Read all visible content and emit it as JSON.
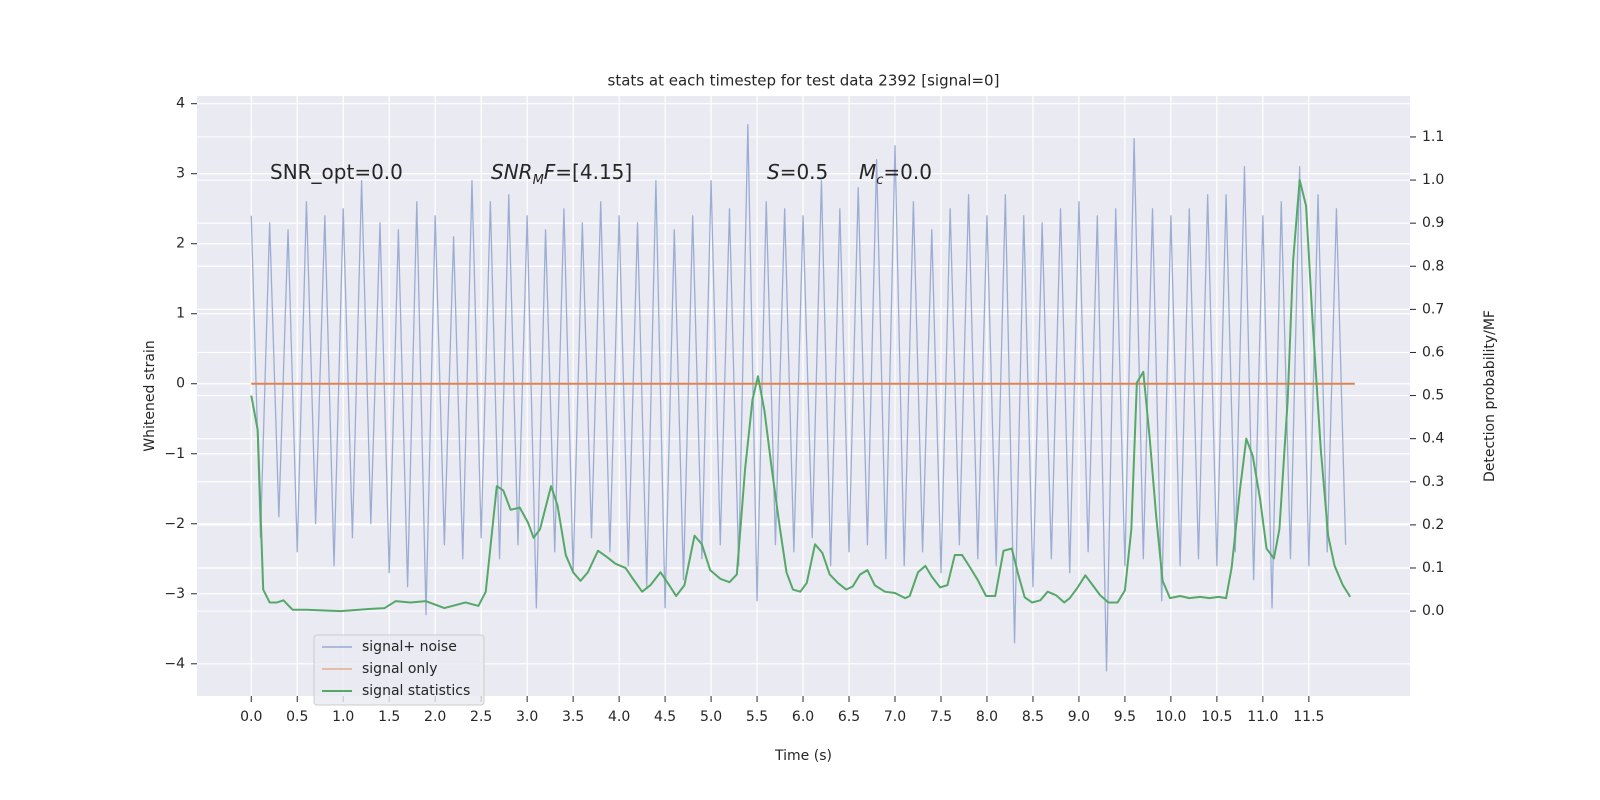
{
  "chart_data": {
    "type": "line",
    "title": "stats at each timestep for test data 2392 [signal=0]",
    "xlabel": "Time (s)",
    "ylabel": "Whitened strain",
    "y2label": "Detection probability/MF",
    "xlim": [
      -0.59,
      12.6
    ],
    "ylim": [
      -4.46,
      4.11
    ],
    "y2lim": [
      -0.197,
      1.195
    ],
    "xticks": [
      {
        "value": 0,
        "label": "0.0"
      },
      0.5,
      {
        "value": 1,
        "label": "1.0"
      },
      1.5,
      {
        "value": 2,
        "label": "2.0"
      },
      2.5,
      {
        "value": 3,
        "label": "3.0"
      },
      3.5,
      {
        "value": 4,
        "label": "4.0"
      },
      4.5,
      {
        "value": 5,
        "label": "5.0"
      },
      5.5,
      {
        "value": 6,
        "label": "6.0"
      },
      6.5,
      {
        "value": 7,
        "label": "7.0"
      },
      7.5,
      {
        "value": 8,
        "label": "8.0"
      },
      8.5,
      {
        "value": 9,
        "label": "9.0"
      },
      9.5,
      {
        "value": 10,
        "label": "10.0"
      },
      10.5,
      {
        "value": 11,
        "label": "11.0"
      },
      11.5
    ],
    "yticks": [
      {
        "value": -4,
        "label": "−4"
      },
      {
        "value": -3,
        "label": "−3"
      },
      {
        "value": -2,
        "label": "−2"
      },
      {
        "value": -1,
        "label": "−1"
      },
      0,
      1,
      2,
      3,
      4
    ],
    "y2ticks": [
      {
        "value": 0,
        "label": "0.0"
      },
      0.1,
      0.2,
      0.3,
      0.4,
      0.5,
      0.6,
      0.7,
      0.8,
      0.9,
      {
        "value": 1,
        "label": "1.0"
      },
      1.1
    ],
    "grid": true,
    "legend": "lower left",
    "annotations": [
      [
        {
          "text": "SNR_opt=0.0"
        }
      ],
      [
        {
          "text": "SNR",
          "italic": true
        },
        {
          "text": "M",
          "italic": true,
          "sub": true
        },
        {
          "text": "F",
          "italic": true
        },
        {
          "text": "=[4.15]"
        }
      ],
      [
        {
          "text": "S",
          "italic": true
        },
        {
          "text": "=0.5"
        }
      ],
      [
        {
          "text": "M",
          "italic": true
        },
        {
          "text": "c",
          "italic": true,
          "sub": true
        },
        {
          "text": "=0.0"
        }
      ]
    ],
    "series": [
      {
        "name": "signal+ noise",
        "color": "#98aad1",
        "axis": "y",
        "x": [
          0,
          0.1,
          0.2,
          0.3,
          0.4,
          0.5,
          0.6,
          0.7,
          0.8,
          0.9,
          1,
          1.1,
          1.2,
          1.3,
          1.4,
          1.5,
          1.6,
          1.7,
          1.8,
          1.9,
          2,
          2.1,
          2.2,
          2.3,
          2.4,
          2.5,
          2.6,
          2.7,
          2.8,
          2.9,
          3,
          3.1,
          3.2,
          3.3,
          3.4,
          3.5,
          3.6,
          3.7,
          3.8,
          3.9,
          4,
          4.1,
          4.2,
          4.3,
          4.4,
          4.5,
          4.6,
          4.7,
          4.8,
          4.9,
          5,
          5.1,
          5.2,
          5.3,
          5.4,
          5.5,
          5.6,
          5.7,
          5.8,
          5.9,
          6,
          6.1,
          6.2,
          6.3,
          6.4,
          6.5,
          6.6,
          6.7,
          6.8,
          6.9,
          7,
          7.1,
          7.2,
          7.3,
          7.4,
          7.5,
          7.6,
          7.7,
          7.8,
          7.9,
          8,
          8.1,
          8.2,
          8.3,
          8.4,
          8.5,
          8.6,
          8.7,
          8.8,
          8.9,
          9,
          9.1,
          9.2,
          9.3,
          9.4,
          9.5,
          9.6,
          9.7,
          9.8,
          9.9,
          10,
          10.1,
          10.2,
          10.3,
          10.4,
          10.5,
          10.6,
          10.7,
          10.8,
          10.9,
          11,
          11.1,
          11.2,
          11.3,
          11.4,
          11.5,
          11.6,
          11.7,
          11.8,
          11.9
        ],
        "values": [
          2.4,
          -2.2,
          2.3,
          -1.9,
          2.2,
          -2.4,
          2.6,
          -2.0,
          2.4,
          -2.6,
          2.5,
          -2.2,
          2.9,
          -2.0,
          2.3,
          -2.7,
          2.2,
          -2.9,
          2.6,
          -3.3,
          2.4,
          -2.3,
          2.1,
          -2.5,
          2.9,
          -2.2,
          2.6,
          -2.5,
          2.7,
          -2.3,
          2.4,
          -3.2,
          2.2,
          -2.4,
          2.5,
          -2.7,
          2.3,
          -2.2,
          2.6,
          -2.4,
          2.4,
          -2.6,
          2.3,
          -2.9,
          2.9,
          -3.2,
          2.2,
          -2.8,
          2.4,
          -2.5,
          2.9,
          -2.3,
          2.5,
          -2.6,
          3.7,
          -3.1,
          2.6,
          -2.3,
          2.5,
          -2.4,
          2.4,
          -2.2,
          2.9,
          -2.6,
          2.5,
          -2.4,
          2.8,
          -2.3,
          3.2,
          -2.5,
          3.4,
          -2.6,
          2.6,
          -2.4,
          2.2,
          -2.7,
          2.5,
          -2.3,
          2.7,
          -2.5,
          2.4,
          -2.6,
          2.7,
          -3.7,
          2.4,
          -2.9,
          2.3,
          -2.5,
          2.5,
          -2.7,
          2.6,
          -2.4,
          2.4,
          -4.1,
          2.5,
          -2.6,
          3.5,
          -2.5,
          2.5,
          -3.1,
          2.4,
          -2.6,
          2.5,
          -2.5,
          2.7,
          -2.6,
          2.7,
          -2.4,
          3.1,
          -2.8,
          2.4,
          -3.2,
          2.6,
          -2.5,
          3.1,
          -2.6,
          2.7,
          -2.4,
          2.5,
          -2.3
        ]
      },
      {
        "name": "signal only",
        "color": "#dd8452",
        "axis": "y",
        "x": [
          0,
          12
        ],
        "values": [
          0,
          0
        ]
      },
      {
        "name": "signal statistics",
        "color": "#55a868",
        "axis": "y2",
        "x": [
          0,
          0.07,
          0.13,
          0.2,
          0.28,
          0.35,
          0.45,
          0.6,
          0.97,
          1.3,
          1.45,
          1.57,
          1.73,
          1.9,
          2.1,
          2.33,
          2.47,
          2.55,
          2.67,
          2.74,
          2.82,
          2.92,
          3.01,
          3.07,
          3.14,
          3.26,
          3.33,
          3.42,
          3.5,
          3.58,
          3.66,
          3.77,
          3.87,
          3.96,
          4.07,
          4.15,
          4.25,
          4.34,
          4.45,
          4.53,
          4.62,
          4.71,
          4.82,
          4.9,
          4.99,
          5.1,
          5.2,
          5.28,
          5.37,
          5.45,
          5.51,
          5.58,
          5.66,
          5.75,
          5.82,
          5.89,
          5.97,
          6.04,
          6.13,
          6.21,
          6.29,
          6.38,
          6.47,
          6.54,
          6.62,
          6.7,
          6.78,
          6.89,
          7.0,
          7.11,
          7.16,
          7.25,
          7.33,
          7.4,
          7.49,
          7.57,
          7.65,
          7.73,
          7.82,
          7.9,
          7.99,
          8.09,
          8.18,
          8.27,
          8.34,
          8.41,
          8.49,
          8.58,
          8.66,
          8.75,
          8.84,
          8.9,
          8.98,
          9.07,
          9.15,
          9.23,
          9.32,
          9.42,
          9.5,
          9.57,
          9.63,
          9.7,
          9.77,
          9.84,
          9.91,
          9.99,
          10.1,
          10.2,
          10.32,
          10.42,
          10.52,
          10.6,
          10.66,
          10.75,
          10.82,
          10.89,
          10.97,
          11.04,
          11.12,
          11.18,
          11.27,
          11.33,
          11.4,
          11.47,
          11.54,
          11.63,
          11.71,
          11.78,
          11.87,
          11.95
        ],
        "values": [
          0.5,
          0.42,
          0.05,
          0.02,
          0.02,
          0.025,
          0.003,
          0.003,
          0.0,
          0.005,
          0.007,
          0.023,
          0.02,
          0.023,
          0.007,
          0.02,
          0.012,
          0.045,
          0.29,
          0.28,
          0.235,
          0.24,
          0.205,
          0.17,
          0.19,
          0.29,
          0.245,
          0.13,
          0.09,
          0.07,
          0.09,
          0.14,
          0.125,
          0.11,
          0.1,
          0.075,
          0.045,
          0.06,
          0.09,
          0.065,
          0.035,
          0.06,
          0.175,
          0.155,
          0.095,
          0.075,
          0.067,
          0.085,
          0.33,
          0.49,
          0.545,
          0.465,
          0.33,
          0.19,
          0.09,
          0.05,
          0.045,
          0.065,
          0.155,
          0.135,
          0.085,
          0.065,
          0.05,
          0.057,
          0.085,
          0.095,
          0.06,
          0.045,
          0.042,
          0.03,
          0.035,
          0.09,
          0.105,
          0.08,
          0.055,
          0.06,
          0.13,
          0.13,
          0.1,
          0.072,
          0.035,
          0.035,
          0.14,
          0.145,
          0.085,
          0.032,
          0.02,
          0.025,
          0.045,
          0.037,
          0.02,
          0.03,
          0.053,
          0.083,
          0.06,
          0.037,
          0.02,
          0.02,
          0.048,
          0.19,
          0.53,
          0.555,
          0.4,
          0.22,
          0.07,
          0.03,
          0.035,
          0.03,
          0.033,
          0.03,
          0.033,
          0.03,
          0.1,
          0.28,
          0.4,
          0.36,
          0.26,
          0.145,
          0.122,
          0.19,
          0.49,
          0.815,
          1.0,
          0.94,
          0.675,
          0.375,
          0.175,
          0.105,
          0.06,
          0.033
        ]
      }
    ]
  }
}
